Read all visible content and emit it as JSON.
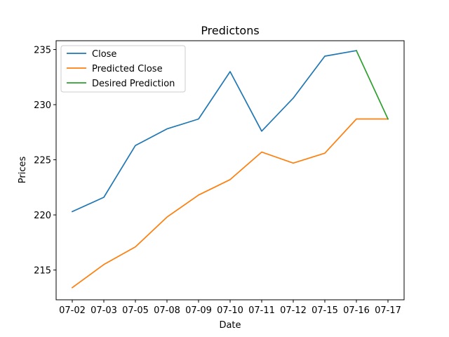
{
  "chart_data": {
    "type": "line",
    "title": "Predictons",
    "xlabel": "Date",
    "ylabel": "Prices",
    "categories": [
      "07-02",
      "07-03",
      "07-05",
      "07-08",
      "07-09",
      "07-10",
      "07-11",
      "07-12",
      "07-15",
      "07-16",
      "07-17"
    ],
    "ylim": [
      212.3,
      235.8
    ],
    "yticks": [
      215,
      220,
      225,
      230,
      235
    ],
    "grid": false,
    "legend_position": "top-left",
    "series": [
      {
        "name": "Close",
        "color": "#1f77b4",
        "x": [
          "07-02",
          "07-03",
          "07-05",
          "07-08",
          "07-09",
          "07-10",
          "07-11",
          "07-12",
          "07-15",
          "07-16"
        ],
        "values": [
          220.3,
          221.6,
          226.3,
          227.8,
          228.7,
          233.0,
          227.6,
          230.6,
          234.4,
          234.9
        ]
      },
      {
        "name": "Predicted Close",
        "color": "#ff7f0e",
        "x": [
          "07-02",
          "07-03",
          "07-05",
          "07-08",
          "07-09",
          "07-10",
          "07-11",
          "07-12",
          "07-15",
          "07-16",
          "07-17"
        ],
        "values": [
          213.4,
          215.5,
          217.1,
          219.8,
          221.8,
          223.2,
          225.7,
          224.7,
          225.6,
          228.7,
          228.7
        ]
      },
      {
        "name": "Desired Prediction",
        "color": "#2ca02c",
        "x": [
          "07-16",
          "07-17"
        ],
        "values": [
          234.9,
          228.7
        ]
      }
    ]
  }
}
